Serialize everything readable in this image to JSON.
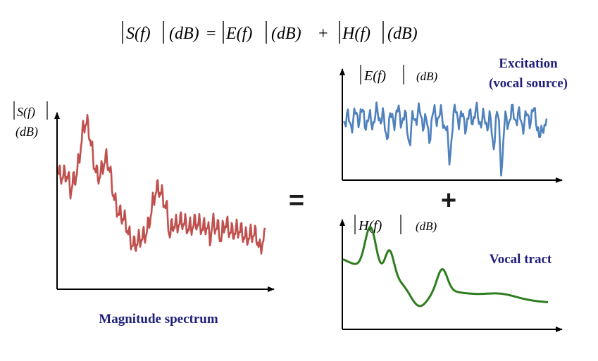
{
  "equation": {
    "lhs": "S(f)",
    "eq": "=",
    "term1": "E(f)",
    "plus": "+",
    "term2": "H(f)",
    "unit": "(dB)"
  },
  "left_panel": {
    "ylabel_mag": "S(f)",
    "ylabel_unit": "(dB)",
    "caption": "Magnitude spectrum"
  },
  "operators": {
    "equals": "=",
    "plus": "+"
  },
  "excitation_panel": {
    "ylabel_mag": "E(f)",
    "ylabel_unit": "(dB)",
    "title_line1": "Excitation",
    "title_line2": "(vocal source)"
  },
  "tract_panel": {
    "ylabel_mag": "H(f)",
    "ylabel_unit": "(dB)",
    "title": "Vocal tract"
  },
  "colors": {
    "speech": "#c0504d",
    "excitation": "#4f81bd",
    "tract": "#2e7d1f",
    "label": "#1f1f7a",
    "axis": "#000000"
  }
}
